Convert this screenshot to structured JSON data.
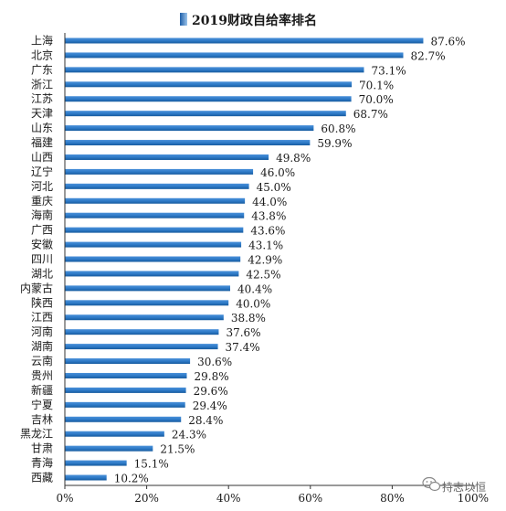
{
  "chart_data": {
    "type": "bar",
    "orientation": "horizontal",
    "title": "2019财政自给率排名",
    "categories": [
      "上海",
      "北京",
      "广东",
      "浙江",
      "江苏",
      "天津",
      "山东",
      "福建",
      "山西",
      "辽宁",
      "河北",
      "重庆",
      "海南",
      "广西",
      "安徽",
      "四川",
      "湖北",
      "内蒙古",
      "陕西",
      "江西",
      "河南",
      "湖南",
      "云南",
      "贵州",
      "新疆",
      "宁夏",
      "吉林",
      "黑龙江",
      "甘肃",
      "青海",
      "西藏"
    ],
    "values": [
      87.6,
      82.7,
      73.1,
      70.1,
      70.0,
      68.7,
      60.8,
      59.9,
      49.8,
      46.0,
      45.0,
      44.0,
      43.8,
      43.6,
      43.1,
      42.9,
      42.5,
      40.4,
      40.0,
      38.8,
      37.6,
      37.4,
      30.6,
      29.8,
      29.6,
      29.4,
      28.4,
      24.3,
      21.5,
      15.1,
      10.2
    ],
    "value_labels": [
      "87.6%",
      "82.7%",
      "73.1%",
      "70.1%",
      "70.0%",
      "68.7%",
      "60.8%",
      "59.9%",
      "49.8%",
      "46.0%",
      "45.0%",
      "44.0%",
      "43.8%",
      "43.6%",
      "43.1%",
      "42.9%",
      "42.5%",
      "40.4%",
      "40.0%",
      "38.8%",
      "37.6%",
      "37.4%",
      "30.6%",
      "29.8%",
      "29.6%",
      "29.4%",
      "28.4%",
      "24.3%",
      "21.5%",
      "15.1%",
      "10.2%"
    ],
    "xlim": [
      0,
      100
    ],
    "x_ticks": [
      "0%",
      "20%",
      "40%",
      "60%",
      "80%",
      "100%"
    ],
    "grid": false,
    "legend": "top-center",
    "bar_color": "#1f6fba"
  },
  "watermark": {
    "text": "持志以恒",
    "icon": "wechat-icon"
  }
}
